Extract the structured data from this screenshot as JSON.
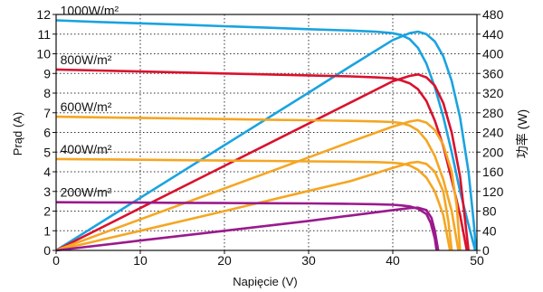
{
  "chart_data": {
    "type": "line",
    "title": "",
    "xlabel": "Napięcie (V)",
    "ylabel": "Prąd (A)",
    "y2label": "功率 (W)",
    "xlim": [
      0,
      50
    ],
    "ylim": [
      0,
      12
    ],
    "y2lim": [
      0,
      480
    ],
    "xticks": [
      0,
      10,
      20,
      30,
      40,
      50
    ],
    "yticks": [
      0,
      1,
      2,
      3,
      4,
      5,
      6,
      7,
      8,
      9,
      10,
      11,
      12
    ],
    "y2ticks": [
      0,
      40,
      80,
      120,
      160,
      200,
      240,
      280,
      320,
      360,
      400,
      440,
      480
    ],
    "grid": "dotted",
    "irradiance_levels": [
      {
        "label": "1000W/m²",
        "color": "#1aa3e0",
        "iv": [
          [
            0,
            11.7
          ],
          [
            5,
            11.62
          ],
          [
            10,
            11.55
          ],
          [
            15,
            11.48
          ],
          [
            20,
            11.4
          ],
          [
            25,
            11.33
          ],
          [
            30,
            11.25
          ],
          [
            35,
            11.18
          ],
          [
            38,
            11.12
          ],
          [
            40,
            11.05
          ],
          [
            41,
            10.95
          ],
          [
            42,
            10.75
          ],
          [
            43,
            10.3
          ],
          [
            44,
            9.5
          ],
          [
            45,
            8.3
          ],
          [
            46,
            6.8
          ],
          [
            47,
            5.0
          ],
          [
            48,
            3.0
          ],
          [
            49,
            1.3
          ],
          [
            49.8,
            0
          ]
        ],
        "pv": [
          [
            0,
            0
          ],
          [
            10,
            107
          ],
          [
            20,
            214
          ],
          [
            30,
            321
          ],
          [
            35,
            375
          ],
          [
            40,
            428
          ],
          [
            42,
            442
          ],
          [
            43,
            445
          ],
          [
            44,
            440
          ],
          [
            45,
            425
          ],
          [
            46,
            395
          ],
          [
            47,
            345
          ],
          [
            48,
            270
          ],
          [
            49,
            160
          ],
          [
            49.6,
            60
          ],
          [
            49.9,
            0
          ]
        ]
      },
      {
        "label": "800W/m²",
        "color": "#d9122e",
        "iv": [
          [
            0,
            9.2
          ],
          [
            5,
            9.15
          ],
          [
            10,
            9.1
          ],
          [
            15,
            9.05
          ],
          [
            20,
            9.0
          ],
          [
            25,
            8.95
          ],
          [
            30,
            8.9
          ],
          [
            35,
            8.85
          ],
          [
            38,
            8.8
          ],
          [
            40,
            8.75
          ],
          [
            41,
            8.65
          ],
          [
            42,
            8.5
          ],
          [
            43,
            8.2
          ],
          [
            44,
            7.6
          ],
          [
            45,
            6.6
          ],
          [
            46,
            5.3
          ],
          [
            47,
            3.6
          ],
          [
            48,
            1.8
          ],
          [
            48.8,
            0
          ]
        ],
        "pv": [
          [
            0,
            0
          ],
          [
            10,
            86
          ],
          [
            20,
            172
          ],
          [
            30,
            258
          ],
          [
            35,
            301
          ],
          [
            40,
            344
          ],
          [
            42,
            355
          ],
          [
            43,
            358
          ],
          [
            44,
            352
          ],
          [
            45,
            335
          ],
          [
            46,
            300
          ],
          [
            47,
            240
          ],
          [
            48,
            150
          ],
          [
            48.6,
            60
          ],
          [
            49,
            0
          ]
        ]
      },
      {
        "label": "600W/m²",
        "color": "#f5a623",
        "iv": [
          [
            0,
            6.8
          ],
          [
            5,
            6.77
          ],
          [
            10,
            6.74
          ],
          [
            15,
            6.71
          ],
          [
            20,
            6.68
          ],
          [
            25,
            6.65
          ],
          [
            30,
            6.62
          ],
          [
            35,
            6.59
          ],
          [
            38,
            6.56
          ],
          [
            40,
            6.53
          ],
          [
            41,
            6.48
          ],
          [
            42,
            6.35
          ],
          [
            43,
            6.1
          ],
          [
            44,
            5.6
          ],
          [
            45,
            4.8
          ],
          [
            46,
            3.6
          ],
          [
            47,
            2.0
          ],
          [
            47.8,
            0
          ]
        ],
        "pv": [
          [
            0,
            0
          ],
          [
            10,
            63
          ],
          [
            20,
            126
          ],
          [
            30,
            189
          ],
          [
            35,
            221
          ],
          [
            40,
            252
          ],
          [
            42,
            262
          ],
          [
            43,
            265
          ],
          [
            44,
            260
          ],
          [
            45,
            245
          ],
          [
            46,
            215
          ],
          [
            47,
            160
          ],
          [
            47.6,
            90
          ],
          [
            48,
            0
          ]
        ]
      },
      {
        "label": "400W/m²",
        "color": "#f5a623",
        "iv": [
          [
            0,
            4.65
          ],
          [
            5,
            4.63
          ],
          [
            10,
            4.61
          ],
          [
            15,
            4.59
          ],
          [
            20,
            4.57
          ],
          [
            25,
            4.55
          ],
          [
            30,
            4.53
          ],
          [
            35,
            4.51
          ],
          [
            38,
            4.49
          ],
          [
            40,
            4.46
          ],
          [
            41,
            4.42
          ],
          [
            42,
            4.32
          ],
          [
            43,
            4.1
          ],
          [
            44,
            3.7
          ],
          [
            45,
            3.0
          ],
          [
            46,
            1.8
          ],
          [
            46.8,
            0
          ]
        ],
        "pv": [
          [
            0,
            0
          ],
          [
            10,
            40
          ],
          [
            20,
            80
          ],
          [
            30,
            121
          ],
          [
            35,
            141
          ],
          [
            40,
            168
          ],
          [
            42,
            178
          ],
          [
            43,
            180
          ],
          [
            44,
            176
          ],
          [
            45,
            160
          ],
          [
            46,
            120
          ],
          [
            46.6,
            60
          ],
          [
            47,
            0
          ]
        ]
      },
      {
        "label": "200W/m²",
        "color": "#9a1a8c",
        "iv": [
          [
            0,
            2.45
          ],
          [
            5,
            2.44
          ],
          [
            10,
            2.43
          ],
          [
            15,
            2.42
          ],
          [
            20,
            2.41
          ],
          [
            25,
            2.4
          ],
          [
            30,
            2.39
          ],
          [
            35,
            2.37
          ],
          [
            38,
            2.35
          ],
          [
            40,
            2.32
          ],
          [
            41,
            2.29
          ],
          [
            42,
            2.24
          ],
          [
            43,
            2.12
          ],
          [
            44,
            1.85
          ],
          [
            44.5,
            1.4
          ],
          [
            45,
            0.6
          ],
          [
            45.2,
            0
          ]
        ],
        "pv": [
          [
            0,
            0
          ],
          [
            10,
            20
          ],
          [
            20,
            40
          ],
          [
            30,
            60
          ],
          [
            35,
            71
          ],
          [
            40,
            82
          ],
          [
            42,
            86
          ],
          [
            43,
            87
          ],
          [
            44,
            82
          ],
          [
            44.6,
            66
          ],
          [
            45,
            40
          ],
          [
            45.4,
            0
          ]
        ]
      }
    ]
  }
}
